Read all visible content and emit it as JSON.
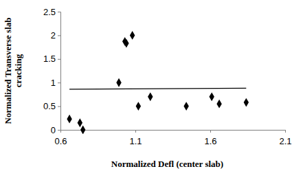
{
  "chart_data": {
    "type": "scatter",
    "x_label": "Normalized Defl (center slab)",
    "y_label": "Normalized Transverse slab cracking",
    "xlim": [
      0.6,
      2.1
    ],
    "xticks": [
      0.6,
      1.1,
      1.6,
      2.1
    ],
    "ylim": [
      0,
      2.5
    ],
    "yticks": [
      0,
      0.5,
      1,
      1.5,
      2,
      2.5
    ],
    "grid": false,
    "series": [
      {
        "type": "scatter",
        "marker": "diamond",
        "color": "#000000",
        "x": [
          0.66,
          0.73,
          0.75,
          0.99,
          1.03,
          1.04,
          1.08,
          1.12,
          1.2,
          1.44,
          1.61,
          1.66,
          1.84
        ],
        "values": [
          0.23,
          0.15,
          0.0,
          1.0,
          1.87,
          1.83,
          2.0,
          0.5,
          0.7,
          0.5,
          0.7,
          0.55,
          0.58
        ]
      },
      {
        "type": "line",
        "line_style": "solid",
        "color": "#000000",
        "x": [
          0.66,
          1.84
        ],
        "values": [
          0.86,
          0.88
        ]
      }
    ]
  }
}
